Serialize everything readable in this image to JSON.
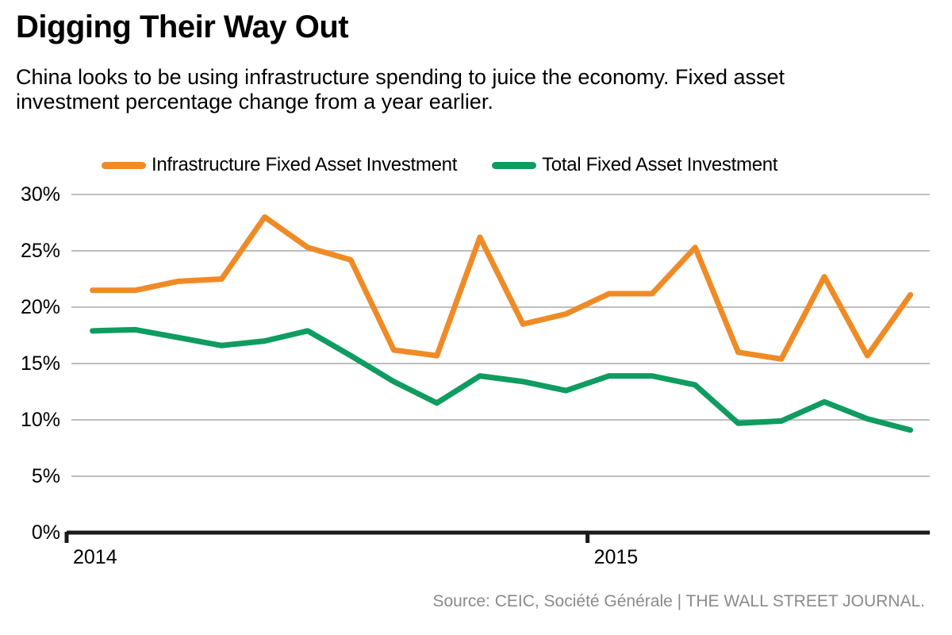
{
  "header": {
    "title": "Digging Their Way Out",
    "subtitle": "China looks to be using infrastructure spending to juice the economy. Fixed asset\ninvestment percentage change from a year earlier."
  },
  "legend": {
    "items": [
      {
        "id": "infrastructure",
        "label": "Infrastructure Fixed Asset Investment",
        "color": "#EF8B27"
      },
      {
        "id": "total",
        "label": "Total Fixed Asset Investment",
        "color": "#0E9C60"
      }
    ]
  },
  "chart_data": {
    "type": "line",
    "title": "Digging Their Way Out",
    "xlabel": "",
    "ylabel": "Fixed asset investment percentage change from a year earlier",
    "x": [
      1,
      2,
      3,
      4,
      5,
      6,
      7,
      8,
      9,
      10,
      11,
      12,
      13,
      14,
      15,
      16,
      17,
      18,
      19,
      20
    ],
    "series": [
      {
        "id": "infrastructure",
        "name": "Infrastructure Fixed Asset Investment",
        "color": "#EF8B27",
        "values": [
          21.5,
          21.5,
          22.3,
          22.5,
          28.0,
          25.3,
          24.2,
          16.2,
          15.7,
          26.2,
          18.5,
          19.4,
          21.2,
          21.2,
          25.3,
          16.0,
          15.4,
          22.7,
          15.7,
          21.1
        ]
      },
      {
        "id": "total",
        "name": "Total Fixed Asset Investment",
        "color": "#0E9C60",
        "values": [
          17.9,
          18.0,
          17.3,
          16.6,
          17.0,
          17.9,
          15.7,
          13.4,
          11.5,
          13.9,
          13.4,
          12.6,
          13.9,
          13.9,
          13.1,
          9.7,
          9.9,
          11.6,
          10.1,
          9.1
        ]
      }
    ],
    "y_ticks": [
      {
        "value": 30,
        "label": "30%"
      },
      {
        "value": 25,
        "label": "25%"
      },
      {
        "value": 20,
        "label": "20%"
      },
      {
        "value": 15,
        "label": "15%"
      },
      {
        "value": 10,
        "label": "10%"
      },
      {
        "value": 5,
        "label": "5%"
      },
      {
        "value": 0,
        "label": "0%"
      }
    ],
    "x_ticks": [
      {
        "label": "2014",
        "x": 0.4
      },
      {
        "label": "2015",
        "x": 12.5
      }
    ],
    "xlim": [
      0.4,
      20.45
    ],
    "ylim": [
      0,
      30
    ],
    "grid": "horizontal",
    "legend_position": "top",
    "colors": {
      "grid": "#BDBDBD",
      "axis": "#1A1A1A"
    }
  },
  "footer": {
    "source": "Source: CEIC, Société Générale  |  THE WALL STREET JOURNAL."
  }
}
